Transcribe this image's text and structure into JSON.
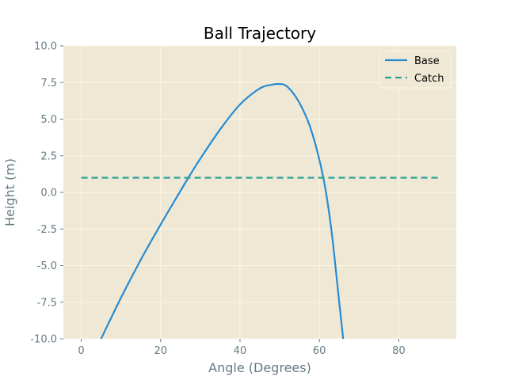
{
  "chart_data": {
    "type": "line",
    "title": "Ball Trajectory",
    "xlabel": "Angle (Degrees)",
    "ylabel": "Height (m)",
    "xlim": [
      -4.5,
      94.5
    ],
    "ylim": [
      -10,
      10
    ],
    "xticks": [
      0,
      20,
      40,
      60,
      80
    ],
    "yticks": [
      -10.0,
      -7.5,
      -5.0,
      -2.5,
      0.0,
      2.5,
      5.0,
      7.5,
      10.0
    ],
    "grid": true,
    "legend_position": "top-right",
    "series": [
      {
        "name": "Base",
        "style": "solid",
        "color": "#268bd2",
        "x": [
          5,
          10,
          15,
          20,
          25,
          27,
          30,
          35,
          40,
          45,
          48,
          50,
          52,
          55,
          58,
          61,
          63,
          65,
          66
        ],
        "y": [
          -10.0,
          -7.2,
          -4.6,
          -2.2,
          0.1,
          1.0,
          2.3,
          4.3,
          6.0,
          7.1,
          7.35,
          7.4,
          7.2,
          6.1,
          4.2,
          1.0,
          -2.5,
          -7.5,
          -10.0
        ]
      },
      {
        "name": "Catch",
        "style": "dashed",
        "color": "#2aa198",
        "x": [
          0,
          90
        ],
        "y": [
          1.0,
          1.0
        ]
      }
    ]
  },
  "colors": {
    "plot_background": "#eee8d5",
    "grid": "#fdf6e3",
    "axis_text": "#657b83"
  }
}
